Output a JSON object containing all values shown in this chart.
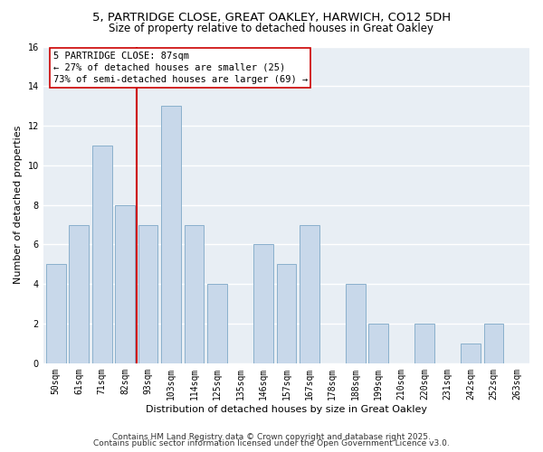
{
  "title": "5, PARTRIDGE CLOSE, GREAT OAKLEY, HARWICH, CO12 5DH",
  "subtitle": "Size of property relative to detached houses in Great Oakley",
  "xlabel": "Distribution of detached houses by size in Great Oakley",
  "ylabel": "Number of detached properties",
  "categories": [
    "50sqm",
    "61sqm",
    "71sqm",
    "82sqm",
    "93sqm",
    "103sqm",
    "114sqm",
    "125sqm",
    "135sqm",
    "146sqm",
    "157sqm",
    "167sqm",
    "178sqm",
    "188sqm",
    "199sqm",
    "210sqm",
    "220sqm",
    "231sqm",
    "242sqm",
    "252sqm",
    "263sqm"
  ],
  "values": [
    5,
    7,
    11,
    8,
    7,
    13,
    7,
    4,
    0,
    6,
    5,
    7,
    0,
    4,
    2,
    0,
    2,
    0,
    1,
    2,
    0
  ],
  "bar_color": "#c8d8ea",
  "bar_edgecolor": "#8ab0cc",
  "marker_line_color": "#cc0000",
  "annotation_line1": "5 PARTRIDGE CLOSE: 87sqm",
  "annotation_line2": "← 27% of detached houses are smaller (25)",
  "annotation_line3": "73% of semi-detached houses are larger (69) →",
  "ylim": [
    0,
    16
  ],
  "yticks": [
    0,
    2,
    4,
    6,
    8,
    10,
    12,
    14,
    16
  ],
  "bg_color": "#ffffff",
  "plot_bg_color": "#e8eef4",
  "grid_color": "#ffffff",
  "footer1": "Contains HM Land Registry data © Crown copyright and database right 2025.",
  "footer2": "Contains public sector information licensed under the Open Government Licence v3.0.",
  "title_fontsize": 9.5,
  "subtitle_fontsize": 8.5,
  "axis_label_fontsize": 8,
  "tick_fontsize": 7,
  "annotation_fontsize": 7.5,
  "footer_fontsize": 6.5
}
